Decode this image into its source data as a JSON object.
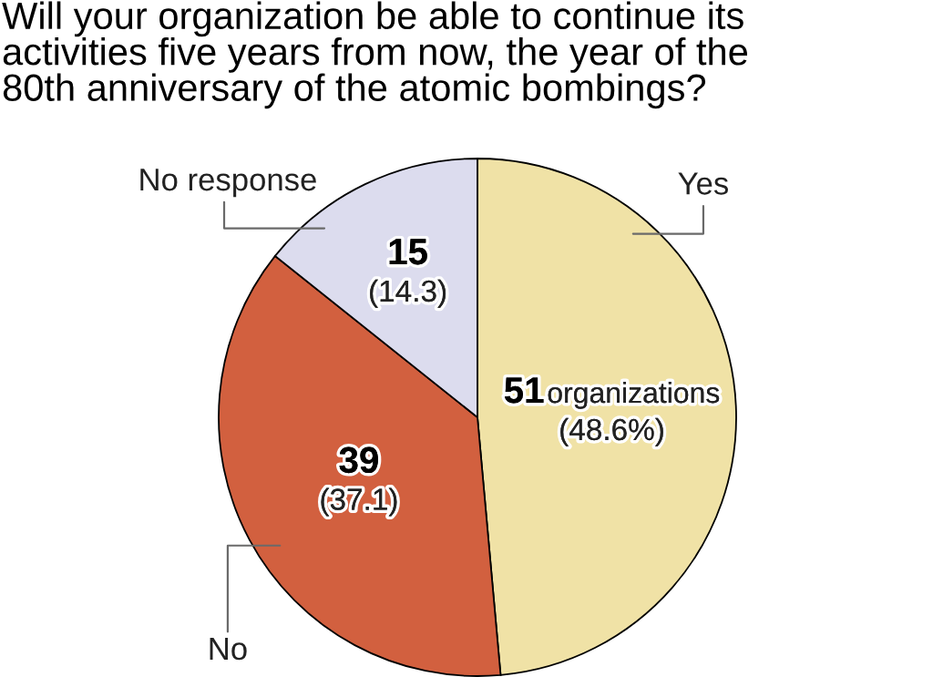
{
  "chart_data": {
    "type": "pie",
    "title": "Will your organization be able to continue its\nactivities five years from now, the year of the\n80th anniversary of the atomic bombings?",
    "categories": [
      "Yes",
      "No",
      "No response"
    ],
    "values": [
      51,
      39,
      15
    ],
    "colors": [
      "#f0e2a6",
      "#d2603f",
      "#dcdcee"
    ],
    "value_labels": [
      "51 organizations\n(48.6%)",
      "39\n(37.1)",
      "15\n(14.3)"
    ]
  }
}
